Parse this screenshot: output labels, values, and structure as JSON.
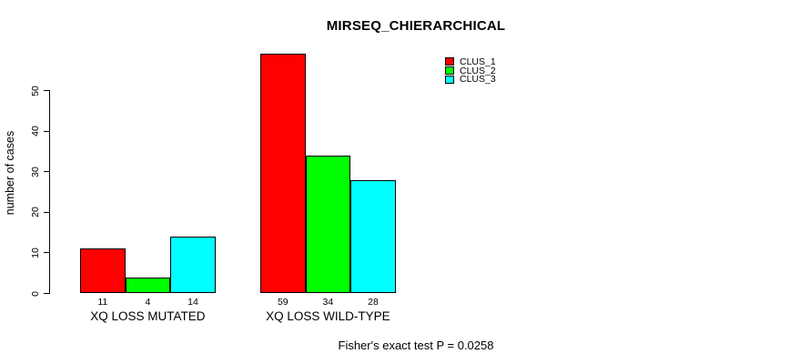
{
  "chart_data": {
    "type": "bar",
    "title": "MIRSEQ_CHIERARCHICAL",
    "xlabel": "",
    "ylabel": "number of cases",
    "ylim": [
      0,
      59
    ],
    "yticks": [
      0,
      10,
      20,
      30,
      40,
      50
    ],
    "grid": false,
    "categories": [
      "XQ LOSS MUTATED",
      "XQ LOSS WILD-TYPE"
    ],
    "series": [
      {
        "name": "CLUS_1",
        "color": "#ff0000",
        "values": [
          11,
          59
        ]
      },
      {
        "name": "CLUS_2",
        "color": "#00ff00",
        "values": [
          4,
          34
        ]
      },
      {
        "name": "CLUS_3",
        "color": "#00ffff",
        "values": [
          14,
          28
        ]
      }
    ],
    "bar_value_labels": [
      [
        "11",
        "4",
        "14"
      ],
      [
        "59",
        "34",
        "28"
      ]
    ],
    "legend_position": "top-right",
    "legend": [
      {
        "label": "CLUS_1",
        "color": "#ff0000"
      },
      {
        "label": "CLUS_2",
        "color": "#00ff00"
      },
      {
        "label": "CLUS_3",
        "color": "#00ffff"
      }
    ],
    "annotation": "Fisher's exact test P = 0.0258"
  }
}
